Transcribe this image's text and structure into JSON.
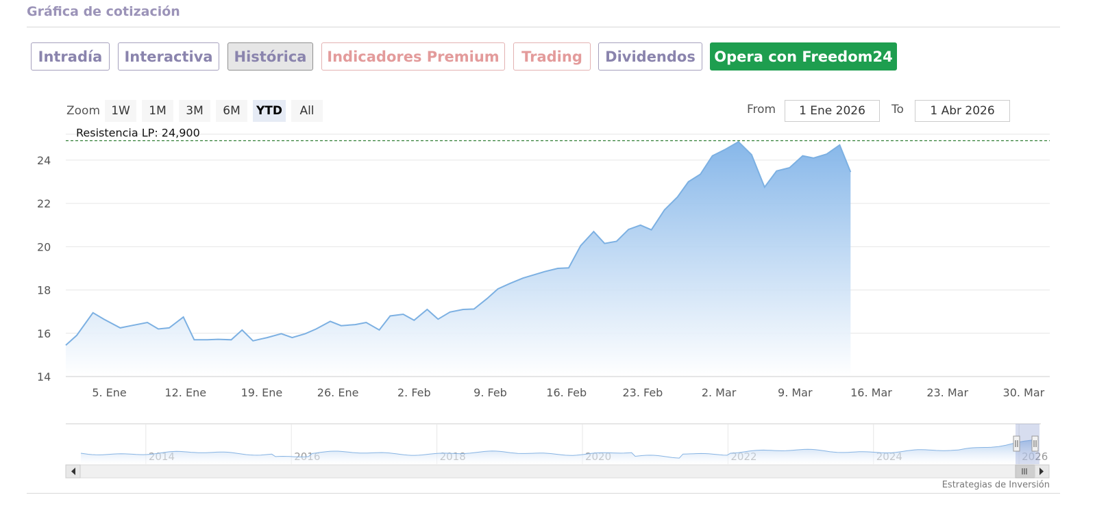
{
  "header": {
    "title": "Gráfica de cotización"
  },
  "tabs": [
    {
      "label": "Intradía",
      "style": "normal"
    },
    {
      "label": "Interactiva",
      "style": "normal"
    },
    {
      "label": "Histórica",
      "style": "active"
    },
    {
      "label": "Indicadores Premium",
      "style": "red"
    },
    {
      "label": "Trading",
      "style": "red"
    },
    {
      "label": "Dividendos",
      "style": "normal"
    },
    {
      "label": "Opera con Freedom24",
      "style": "green"
    }
  ],
  "zoom": {
    "label": "Zoom",
    "buttons": [
      "1W",
      "1M",
      "3M",
      "6M",
      "YTD",
      "All"
    ],
    "selected": "YTD"
  },
  "range": {
    "from_label": "From",
    "from_value": "1 Ene 2026",
    "to_label": "To",
    "to_value": "1 Abr 2026"
  },
  "credit": "Estrategias de Inversión",
  "colors": {
    "line": "#7cb0e2",
    "area_top": "#8ab8ea",
    "area_bottom": "#ffffff",
    "resistance": "#2e7d32",
    "green_button": "#1e9e4f"
  },
  "chart_data": {
    "type": "area",
    "ylim": [
      14,
      25.2
    ],
    "yticks": [
      14,
      16,
      18,
      20,
      22,
      24
    ],
    "xticks": [
      {
        "label": "5. Ene",
        "day": 4
      },
      {
        "label": "12. Ene",
        "day": 11
      },
      {
        "label": "19. Ene",
        "day": 18
      },
      {
        "label": "26. Ene",
        "day": 25
      },
      {
        "label": "2. Feb",
        "day": 32
      },
      {
        "label": "9. Feb",
        "day": 39
      },
      {
        "label": "16. Feb",
        "day": 46
      },
      {
        "label": "23. Feb",
        "day": 53
      },
      {
        "label": "2. Mar",
        "day": 60
      },
      {
        "label": "9. Mar",
        "day": 67
      },
      {
        "label": "16. Mar",
        "day": 74
      },
      {
        "label": "23. Mar",
        "day": 81
      },
      {
        "label": "30. Mar",
        "day": 88
      }
    ],
    "x_range_days": [
      0,
      90.4
    ],
    "resistance": {
      "label": "Resistencia LP: 24,900",
      "value": 24.9
    },
    "points": [
      [
        0,
        15.45
      ],
      [
        1,
        15.9
      ],
      [
        2.5,
        16.95
      ],
      [
        3.5,
        16.65
      ],
      [
        5,
        16.25
      ],
      [
        6,
        16.35
      ],
      [
        7.5,
        16.5
      ],
      [
        8.5,
        16.2
      ],
      [
        9.5,
        16.25
      ],
      [
        10.8,
        16.75
      ],
      [
        11.8,
        15.7
      ],
      [
        13,
        15.7
      ],
      [
        14,
        15.72
      ],
      [
        15.2,
        15.7
      ],
      [
        16.2,
        16.15
      ],
      [
        17.2,
        15.65
      ],
      [
        18.5,
        15.8
      ],
      [
        19.8,
        15.98
      ],
      [
        20.8,
        15.8
      ],
      [
        22,
        15.98
      ],
      [
        23,
        16.2
      ],
      [
        24.3,
        16.55
      ],
      [
        25.3,
        16.35
      ],
      [
        26.6,
        16.4
      ],
      [
        27.6,
        16.5
      ],
      [
        28.8,
        16.15
      ],
      [
        29.8,
        16.8
      ],
      [
        31,
        16.88
      ],
      [
        32,
        16.6
      ],
      [
        33.2,
        17.1
      ],
      [
        34.2,
        16.65
      ],
      [
        35.3,
        16.98
      ],
      [
        36.5,
        17.1
      ],
      [
        37.5,
        17.12
      ],
      [
        38.7,
        17.6
      ],
      [
        39.7,
        18.05
      ],
      [
        40.8,
        18.3
      ],
      [
        42,
        18.55
      ],
      [
        43,
        18.7
      ],
      [
        44,
        18.85
      ],
      [
        45.2,
        19
      ],
      [
        46.2,
        19.02
      ],
      [
        47.3,
        20.05
      ],
      [
        48.5,
        20.7
      ],
      [
        49.5,
        20.15
      ],
      [
        50.6,
        20.25
      ],
      [
        51.7,
        20.8
      ],
      [
        52.8,
        21
      ],
      [
        53.8,
        20.78
      ],
      [
        55,
        21.7
      ],
      [
        56.2,
        22.3
      ],
      [
        57.2,
        23
      ],
      [
        58.3,
        23.35
      ],
      [
        59.4,
        24.2
      ],
      [
        60.6,
        24.5
      ],
      [
        61.8,
        24.85
      ],
      [
        63,
        24.25
      ],
      [
        64.2,
        22.75
      ],
      [
        65.3,
        23.5
      ],
      [
        66.5,
        23.65
      ],
      [
        67.7,
        24.2
      ],
      [
        68.7,
        24.1
      ],
      [
        69.9,
        24.28
      ],
      [
        71.1,
        24.7
      ],
      [
        72.1,
        23.45
      ]
    ],
    "navigator": {
      "year_labels": [
        "2014",
        "2016",
        "2018",
        "2020",
        "2022",
        "2024",
        "2026"
      ],
      "x_range_years": [
        2012.9,
        2026.3
      ]
    }
  }
}
